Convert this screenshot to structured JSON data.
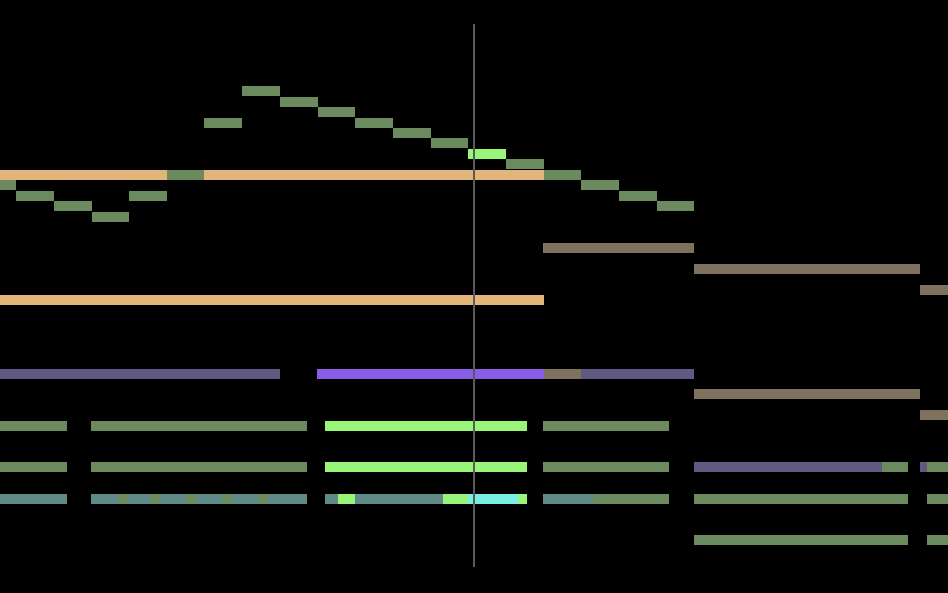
{
  "colors": {
    "background": "#000000",
    "sage": "#6b8a5e",
    "bright_green": "#97f577",
    "orange": "#e2b57a",
    "brown": "#7e715e",
    "purple_dim": "#5e5a82",
    "purple_bright": "#8a5de6",
    "teal": "#5f8a88",
    "cyan": "#77efe3",
    "playhead": "#5a5a5a"
  }
}
